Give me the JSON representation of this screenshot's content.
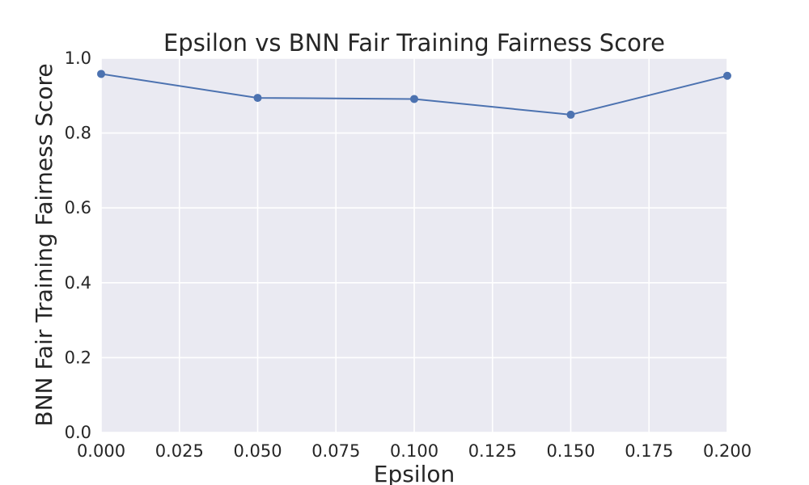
{
  "chart_data": {
    "type": "line",
    "title": "Epsilon vs BNN Fair Training Fairness Score",
    "xlabel": "Epsilon",
    "ylabel": "BNN Fair Training Fairness Score",
    "x": [
      0.0,
      0.05,
      0.1,
      0.15,
      0.2
    ],
    "series": [
      {
        "values": [
          0.958,
          0.894,
          0.891,
          0.849,
          0.953
        ]
      }
    ],
    "xlim": [
      0.0,
      0.2
    ],
    "ylim": [
      0.0,
      1.0
    ],
    "xticks": [
      "0.000",
      "0.025",
      "0.050",
      "0.075",
      "0.100",
      "0.125",
      "0.150",
      "0.175",
      "0.200"
    ],
    "yticks": [
      "0.0",
      "0.2",
      "0.4",
      "0.6",
      "0.8",
      "1.0"
    ],
    "grid": true,
    "legend": "none",
    "colors": {
      "plot_background": "#eaeaf2",
      "grid": "#ffffff",
      "line": "#4c72b0",
      "text": "#262626"
    }
  }
}
